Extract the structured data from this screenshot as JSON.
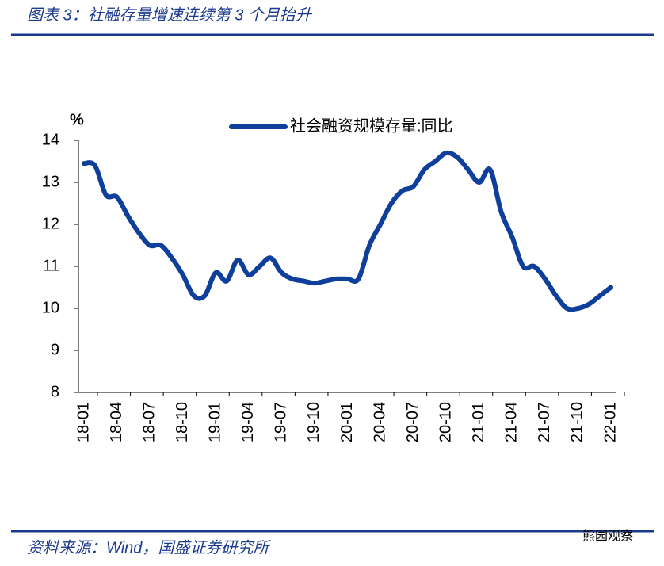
{
  "chart_data": {
    "type": "line",
    "title": "图表 3：社融存量增速连续第 3 个月抬升",
    "source": "资料来源：Wind，国盛证券研究所",
    "watermark": "熊园观察",
    "y_label": "%",
    "categories": [
      "18-01",
      null,
      null,
      "18-04",
      null,
      null,
      "18-07",
      null,
      null,
      "18-10",
      null,
      null,
      "19-01",
      null,
      null,
      "19-04",
      null,
      null,
      "19-07",
      null,
      null,
      "19-10",
      null,
      null,
      "20-01",
      null,
      null,
      "20-04",
      null,
      null,
      "20-07",
      null,
      null,
      "20-10",
      null,
      null,
      "21-01",
      null,
      null,
      "21-04",
      null,
      null,
      "21-07",
      null,
      null,
      "21-10",
      null,
      null,
      "22-01"
    ],
    "series": [
      {
        "name": "社会融资规模存量:同比",
        "color": "#0e3f9a",
        "values": [
          13.45,
          13.4,
          12.7,
          12.65,
          12.2,
          11.8,
          11.5,
          11.5,
          11.2,
          10.8,
          10.3,
          10.3,
          10.85,
          10.65,
          11.15,
          10.8,
          11.0,
          11.2,
          10.85,
          10.7,
          10.65,
          10.6,
          10.65,
          10.7,
          10.7,
          10.7,
          11.5,
          12.0,
          12.5,
          12.8,
          12.9,
          13.3,
          13.5,
          13.7,
          13.6,
          13.3,
          13.0,
          13.3,
          12.3,
          11.7,
          11.0,
          11.0,
          10.7,
          10.3,
          10.0,
          10.0,
          10.1,
          10.3,
          10.5
        ]
      }
    ],
    "ylim": [
      8,
      14
    ],
    "yticks": [
      8,
      9,
      10,
      11,
      12,
      13,
      14
    ],
    "legend": "top"
  }
}
